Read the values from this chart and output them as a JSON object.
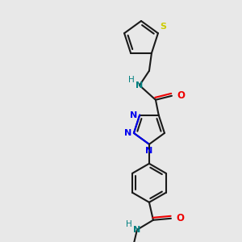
{
  "bg_color": "#e8e8e8",
  "bond_color": "#1a1a1a",
  "N_color": "#0000ee",
  "O_color": "#ee0000",
  "S_color": "#cccc00",
  "NH_color": "#008080",
  "lw": 1.5,
  "figsize": [
    3.0,
    3.0
  ],
  "dpi": 100,
  "thiophene_S_label": "S",
  "NH1_label": "H",
  "NH1_N_label": "N",
  "O1_label": "O",
  "triazole_N1_label": "N",
  "triazole_N2_label": "N",
  "triazole_N3_label": "N",
  "NH2_label": "H",
  "NH2_N_label": "N",
  "O2_label": "O"
}
